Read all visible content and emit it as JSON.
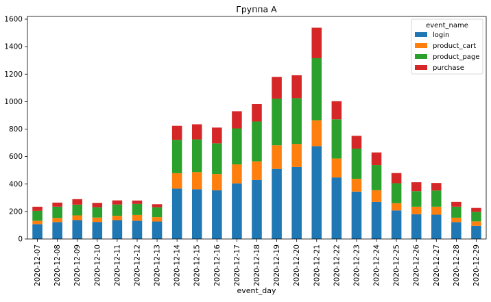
{
  "chart_data": {
    "type": "bar",
    "stacked": true,
    "title": "Группа А",
    "xlabel": "event_day",
    "ylabel": "",
    "ylim": [
      0,
      1620
    ],
    "yticks": [
      0,
      200,
      400,
      600,
      800,
      1000,
      1200,
      1400,
      1600
    ],
    "categories": [
      "2020-12-07",
      "2020-12-08",
      "2020-12-09",
      "2020-12-10",
      "2020-12-11",
      "2020-12-12",
      "2020-12-13",
      "2020-12-14",
      "2020-12-15",
      "2020-12-16",
      "2020-12-17",
      "2020-12-18",
      "2020-12-19",
      "2020-12-20",
      "2020-12-21",
      "2020-12-22",
      "2020-12-23",
      "2020-12-24",
      "2020-12-25",
      "2020-12-26",
      "2020-12-27",
      "2020-12-28",
      "2020-12-29"
    ],
    "legend_title": "event_name",
    "legend_position": "top-right",
    "series": [
      {
        "name": "login",
        "color": "#1f77b4",
        "values": [
          108,
          123,
          137,
          124,
          137,
          133,
          127,
          367,
          362,
          355,
          405,
          430,
          510,
          524,
          676,
          448,
          345,
          270,
          208,
          180,
          177,
          123,
          96
        ]
      },
      {
        "name": "product_cart",
        "color": "#ff7f0e",
        "values": [
          25,
          30,
          35,
          32,
          32,
          42,
          32,
          112,
          125,
          118,
          138,
          135,
          172,
          168,
          188,
          138,
          93,
          85,
          53,
          55,
          58,
          32,
          32
        ]
      },
      {
        "name": "product_page",
        "color": "#2ca02c",
        "values": [
          72,
          82,
          78,
          75,
          82,
          80,
          72,
          243,
          238,
          223,
          262,
          290,
          340,
          333,
          452,
          285,
          220,
          183,
          145,
          113,
          118,
          80,
          70
        ]
      },
      {
        "name": "purchase",
        "color": "#d62728",
        "values": [
          30,
          30,
          40,
          32,
          30,
          25,
          22,
          102,
          110,
          115,
          125,
          127,
          158,
          167,
          222,
          132,
          93,
          92,
          74,
          65,
          55,
          35,
          28
        ]
      }
    ]
  }
}
